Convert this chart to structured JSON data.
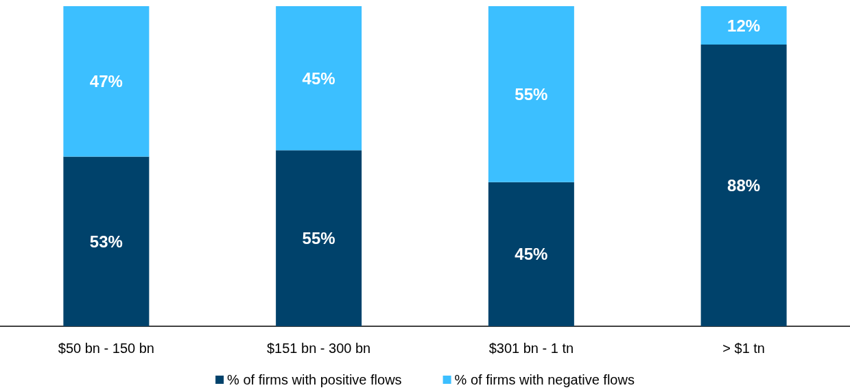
{
  "chart_data": {
    "type": "bar",
    "stacked": true,
    "categories": [
      "$50 bn - 150 bn",
      "$151 bn - 300 bn",
      "$301 bn - 1 tn",
      "> $1 tn"
    ],
    "series": [
      {
        "name": "% of firms with positive flows",
        "color": "#00426b",
        "values": [
          53,
          55,
          45,
          88
        ],
        "value_labels": [
          "53%",
          "55%",
          "45%",
          "88%"
        ]
      },
      {
        "name": "% of firms with negative flows",
        "color": "#3cbfff",
        "values": [
          47,
          45,
          55,
          12
        ],
        "value_labels": [
          "47%",
          "45%",
          "55%",
          "12%"
        ]
      }
    ],
    "legend": "bottom",
    "grid": false
  }
}
